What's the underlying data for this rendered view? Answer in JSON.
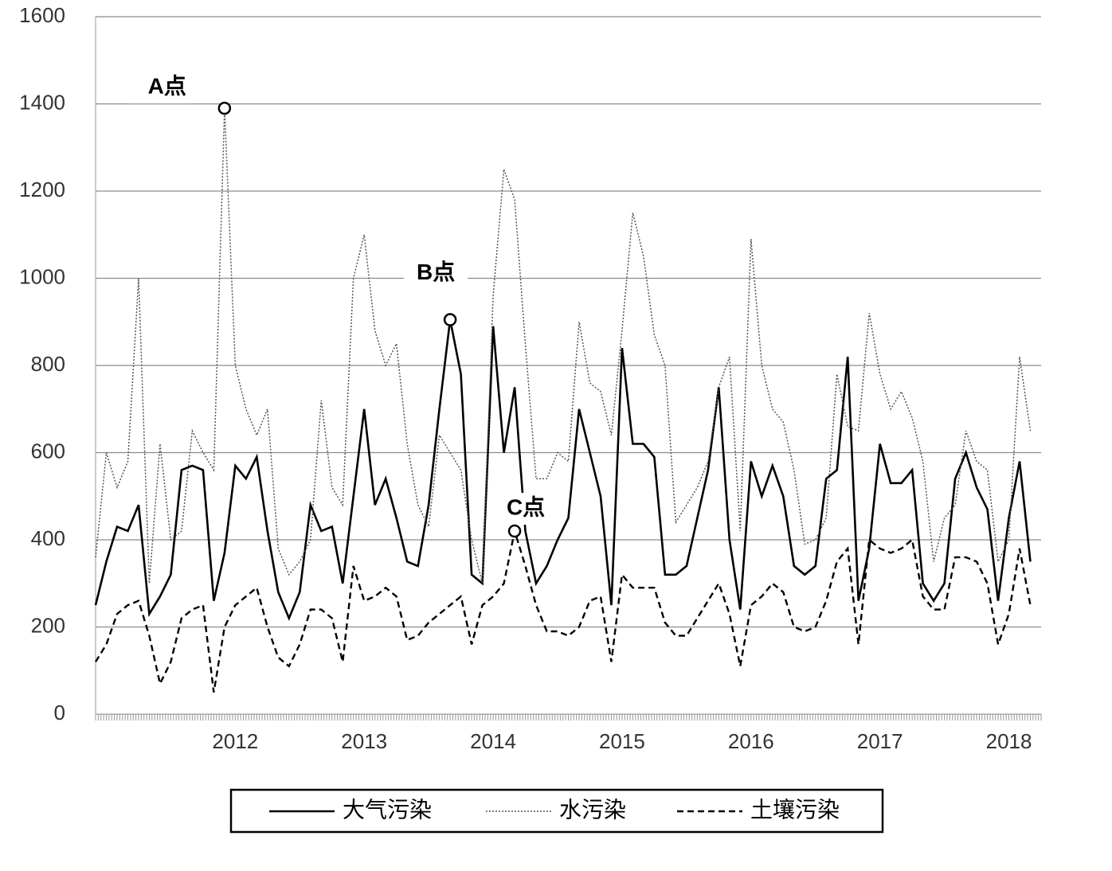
{
  "chart_data": {
    "type": "line",
    "categories": [
      null,
      null,
      null,
      null,
      null,
      null,
      null,
      null,
      null,
      null,
      null,
      null,
      null,
      "2012",
      null,
      null,
      null,
      null,
      null,
      null,
      null,
      null,
      null,
      null,
      null,
      "2013",
      null,
      null,
      null,
      null,
      null,
      null,
      null,
      null,
      null,
      null,
      null,
      "2014",
      null,
      null,
      null,
      null,
      null,
      null,
      null,
      null,
      null,
      null,
      null,
      "2015",
      null,
      null,
      null,
      null,
      null,
      null,
      null,
      null,
      null,
      null,
      null,
      "2016",
      null,
      null,
      null,
      null,
      null,
      null,
      null,
      null,
      null,
      null,
      null,
      "2017",
      null,
      null,
      null,
      null,
      null,
      null,
      null,
      null,
      null,
      null,
      null,
      "2018",
      null,
      null,
      null
    ],
    "series": [
      {
        "name": "大气污染",
        "color": "#000000",
        "dash": "solid",
        "values": [
          250,
          350,
          430,
          420,
          480,
          230,
          270,
          320,
          560,
          570,
          560,
          260,
          370,
          570,
          540,
          590,
          420,
          280,
          220,
          280,
          480,
          420,
          430,
          300,
          500,
          700,
          480,
          540,
          450,
          350,
          340,
          480,
          700,
          905,
          780,
          320,
          300,
          890,
          600,
          750,
          420,
          300,
          340,
          400,
          450,
          700,
          600,
          500,
          250,
          840,
          620,
          620,
          590,
          320,
          320,
          340,
          450,
          560,
          750,
          400,
          240,
          580,
          500,
          570,
          500,
          340,
          320,
          340,
          540,
          560,
          820,
          260,
          380,
          620,
          530,
          530,
          560,
          300,
          260,
          300,
          540,
          600,
          520,
          470,
          260,
          450,
          580,
          350,
          null
        ]
      },
      {
        "name": "水污染",
        "color": "#555555",
        "dash": "dotted",
        "values": [
          360,
          600,
          520,
          580,
          1000,
          300,
          620,
          400,
          420,
          650,
          600,
          560,
          1390,
          800,
          700,
          640,
          700,
          380,
          320,
          350,
          400,
          720,
          520,
          480,
          1000,
          1100,
          880,
          800,
          850,
          620,
          480,
          430,
          640,
          600,
          560,
          400,
          300,
          960,
          1250,
          1180,
          850,
          540,
          540,
          600,
          580,
          900,
          760,
          740,
          640,
          880,
          1150,
          1050,
          870,
          800,
          440,
          480,
          520,
          580,
          750,
          820,
          420,
          1090,
          800,
          700,
          670,
          560,
          390,
          400,
          450,
          780,
          660,
          650,
          920,
          780,
          700,
          740,
          680,
          580,
          350,
          450,
          480,
          650,
          580,
          560,
          350,
          400,
          820,
          650,
          null
        ]
      },
      {
        "name": "土壤污染",
        "color": "#000000",
        "dash": "dashed",
        "values": [
          120,
          160,
          230,
          250,
          260,
          180,
          70,
          120,
          220,
          240,
          250,
          50,
          200,
          250,
          270,
          290,
          200,
          130,
          110,
          160,
          240,
          240,
          220,
          120,
          340,
          260,
          270,
          290,
          270,
          170,
          180,
          210,
          230,
          250,
          270,
          160,
          250,
          270,
          300,
          420,
          340,
          250,
          190,
          190,
          180,
          200,
          260,
          270,
          120,
          320,
          290,
          290,
          290,
          210,
          180,
          180,
          220,
          260,
          300,
          230,
          110,
          250,
          270,
          300,
          280,
          200,
          190,
          200,
          260,
          350,
          380,
          160,
          400,
          380,
          370,
          380,
          400,
          270,
          240,
          240,
          360,
          360,
          350,
          300,
          160,
          230,
          380,
          250,
          null
        ]
      }
    ],
    "annotations": [
      {
        "text": "A点",
        "value": 1390
      },
      {
        "text": "B点",
        "value": 905
      },
      {
        "text": "C点",
        "value": 420
      }
    ],
    "ylim": [
      0,
      1600
    ],
    "yticks": [
      0,
      200,
      400,
      600,
      800,
      1000,
      1200,
      1400,
      1600
    ],
    "grid": true,
    "legend": "bottom"
  }
}
